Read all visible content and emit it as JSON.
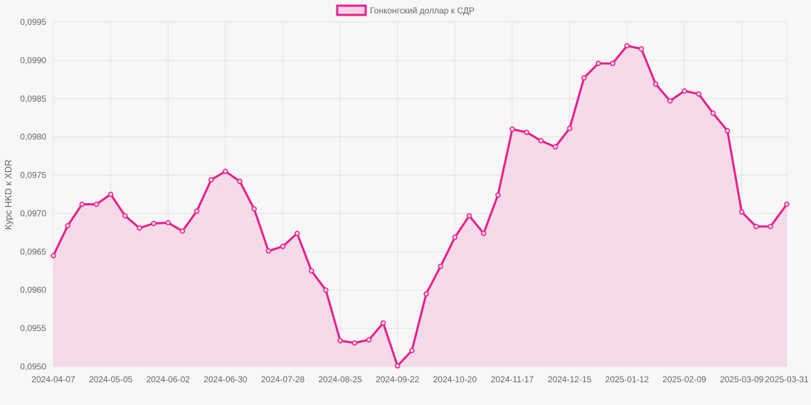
{
  "chart_data": {
    "type": "area",
    "legend_position": "top-center",
    "grid": true,
    "ylabel": "Курс HKD к XDR",
    "xlabel": "",
    "ylim": [
      0.095,
      0.0995
    ],
    "y_ticks": [
      "0,0950",
      "0,0955",
      "0,0960",
      "0,0965",
      "0,0970",
      "0,0975",
      "0,0980",
      "0,0985",
      "0,0990",
      "0,0995"
    ],
    "x_tick_labels": [
      "2024-04-07",
      "2024-05-05",
      "2024-06-02",
      "2024-06-30",
      "2024-07-28",
      "2024-08-25",
      "2024-09-22",
      "2024-10-20",
      "2024-11-17",
      "2024-12-15",
      "2025-01-12",
      "2025-02-09",
      "2025-03-09",
      "2025-03-31"
    ],
    "series": [
      {
        "name": "Гонконгский доллар к СДР",
        "line_color": "#e91e8c",
        "fill_color": "#f5d5e6",
        "x": [
          "2024-04-07",
          "2024-04-14",
          "2024-04-21",
          "2024-04-28",
          "2024-05-05",
          "2024-05-12",
          "2024-05-19",
          "2024-05-26",
          "2024-06-02",
          "2024-06-09",
          "2024-06-16",
          "2024-06-23",
          "2024-06-30",
          "2024-07-07",
          "2024-07-14",
          "2024-07-21",
          "2024-07-28",
          "2024-08-04",
          "2024-08-11",
          "2024-08-18",
          "2024-08-25",
          "2024-09-01",
          "2024-09-08",
          "2024-09-15",
          "2024-09-22",
          "2024-09-29",
          "2024-10-06",
          "2024-10-13",
          "2024-10-20",
          "2024-10-27",
          "2024-11-03",
          "2024-11-10",
          "2024-11-17",
          "2024-11-24",
          "2024-12-01",
          "2024-12-08",
          "2024-12-15",
          "2024-12-22",
          "2024-12-29",
          "2025-01-05",
          "2025-01-12",
          "2025-01-19",
          "2025-01-26",
          "2025-02-02",
          "2025-02-09",
          "2025-02-16",
          "2025-02-23",
          "2025-03-02",
          "2025-03-09",
          "2025-03-16",
          "2025-03-23",
          "2025-03-31"
        ],
        "values": [
          0.09645,
          0.09684,
          0.09712,
          0.09712,
          0.09725,
          0.09697,
          0.09681,
          0.09687,
          0.09688,
          0.09677,
          0.09703,
          0.09744,
          0.09755,
          0.09742,
          0.09706,
          0.09651,
          0.09657,
          0.09674,
          0.09625,
          0.096,
          0.09534,
          0.09531,
          0.09535,
          0.09557,
          0.09501,
          0.09521,
          0.09595,
          0.09631,
          0.09669,
          0.09697,
          0.09674,
          0.09724,
          0.0981,
          0.09806,
          0.09795,
          0.09787,
          0.09811,
          0.09877,
          0.09896,
          0.09896,
          0.09919,
          0.09915,
          0.09869,
          0.09847,
          0.0986,
          0.09856,
          0.09831,
          0.09808,
          0.09702,
          0.09683,
          0.09683,
          0.09712
        ]
      }
    ]
  }
}
